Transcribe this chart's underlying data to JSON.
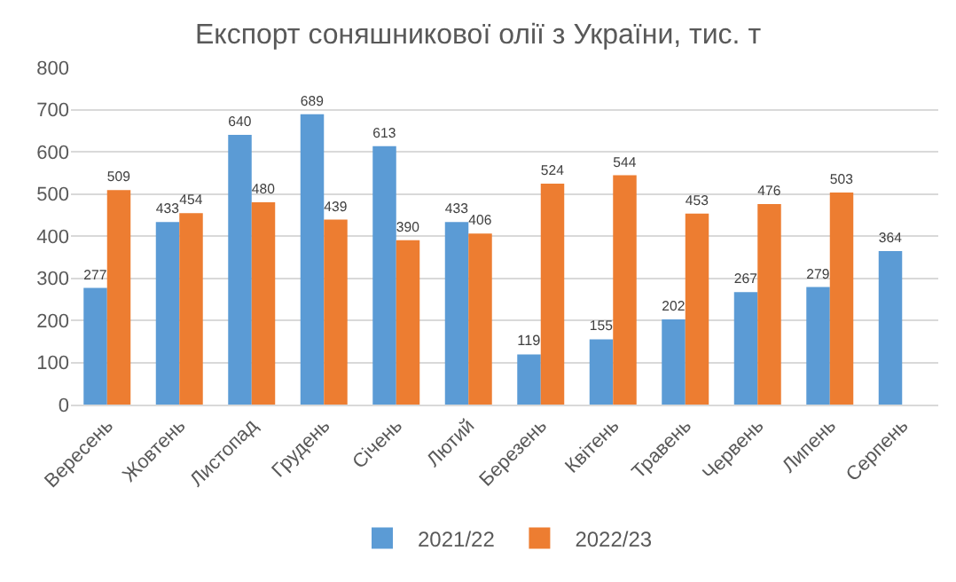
{
  "chart_data": {
    "type": "bar",
    "title": "Експорт соняшникової олії з України, тис. т",
    "categories": [
      "Вересень",
      "Жовтень",
      "Листопад",
      "Грудень",
      "Січень",
      "Лютий",
      "Березень",
      "Квітень",
      "Травень",
      "Червень",
      "Липень",
      "Серпень"
    ],
    "series": [
      {
        "name": "2021/22",
        "color": "#5b9bd5",
        "values": [
          277,
          433,
          640,
          689,
          613,
          433,
          119,
          155,
          202,
          267,
          279,
          364
        ]
      },
      {
        "name": "2022/23",
        "color": "#ed7d31",
        "values": [
          509,
          454,
          480,
          439,
          390,
          406,
          524,
          544,
          453,
          476,
          503,
          null
        ]
      }
    ],
    "ylim": [
      0,
      800
    ],
    "yticks": [
      0,
      100,
      200,
      300,
      400,
      500,
      600,
      700,
      800
    ],
    "grid": "y",
    "legend": "bottom",
    "data_labels": true
  }
}
